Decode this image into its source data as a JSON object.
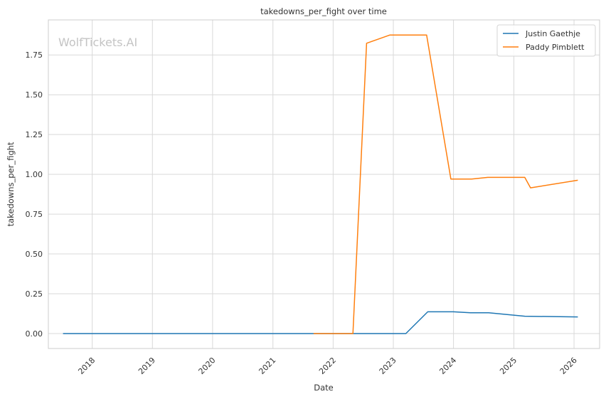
{
  "chart_data": {
    "type": "line",
    "title": "takedowns_per_fight over time",
    "xlabel": "Date",
    "ylabel": "takedowns_per_fight",
    "watermark": "WolfTickets.AI",
    "grid": true,
    "legend_position": "top-right",
    "x_ticks": [
      "2018",
      "2019",
      "2020",
      "2021",
      "2022",
      "2023",
      "2024",
      "2025",
      "2026"
    ],
    "y_ticks": [
      "0.00",
      "0.25",
      "0.50",
      "0.75",
      "1.00",
      "1.25",
      "1.50",
      "1.75"
    ],
    "xlim": [
      "2017-04-10",
      "2026-06-05"
    ],
    "ylim": [
      -0.094,
      1.97
    ],
    "series": [
      {
        "name": "Justin Gaethje",
        "color": "#1f77b4",
        "points": [
          [
            "2017-07-08",
            0.0
          ],
          [
            "2018-04-14",
            0.0
          ],
          [
            "2018-08-25",
            0.0
          ],
          [
            "2019-03-30",
            0.0
          ],
          [
            "2019-09-14",
            0.0
          ],
          [
            "2020-05-09",
            0.0
          ],
          [
            "2020-10-24",
            0.0
          ],
          [
            "2021-11-06",
            0.0
          ],
          [
            "2022-05-07",
            0.0
          ],
          [
            "2023-03-18",
            0.0
          ],
          [
            "2023-07-29",
            0.1364
          ],
          [
            "2024-01-01",
            0.1364
          ],
          [
            "2024-04-13",
            0.1304
          ],
          [
            "2024-08-01",
            0.1304
          ],
          [
            "2025-03-08",
            0.1087
          ],
          [
            "2026-01-24",
            0.1042
          ]
        ]
      },
      {
        "name": "Paddy Pimblett",
        "color": "#ff7f0e",
        "points": [
          [
            "2021-09-04",
            0.0
          ],
          [
            "2022-03-19",
            0.0
          ],
          [
            "2022-05-01",
            0.0
          ],
          [
            "2022-07-23",
            1.8235
          ],
          [
            "2022-12-10",
            1.875
          ],
          [
            "2023-07-22",
            1.875
          ],
          [
            "2023-12-16",
            0.9706
          ],
          [
            "2024-04-20",
            0.9706
          ],
          [
            "2024-07-27",
            0.9808
          ],
          [
            "2025-03-08",
            0.9808
          ],
          [
            "2025-04-12",
            0.9153
          ],
          [
            "2026-01-24",
            0.963
          ]
        ]
      }
    ]
  }
}
